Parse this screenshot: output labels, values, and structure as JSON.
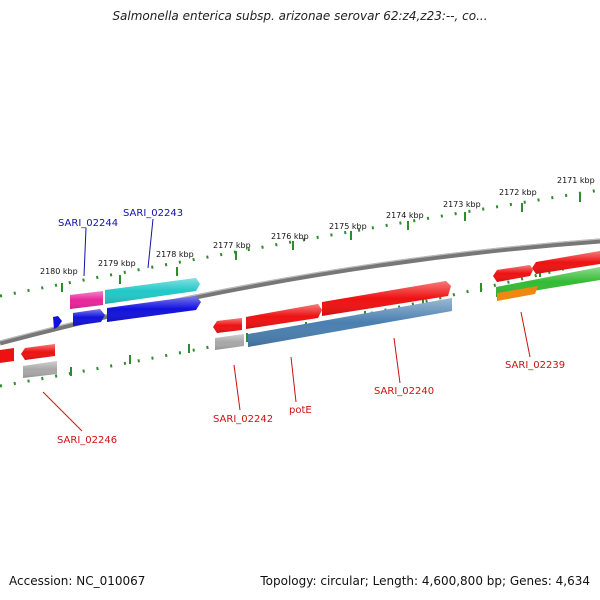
{
  "title": "Salmonella enterica subsp. arizonae serovar 62:z4,z23:--, co...",
  "accession_text": "Accession: NC_010067",
  "summary_text": "Topology: circular; Length: 4,600,800 bp; Genes: 4,634",
  "kbp_labels": [
    "2171 kbp",
    "2172 kbp",
    "2173 kbp",
    "2174 kbp",
    "2175 kbp",
    "2176 kbp",
    "2177 kbp",
    "2178 kbp",
    "2179 kbp",
    "2180 kbp"
  ],
  "gene_labels": [
    "SARI_02244",
    "SARI_02243",
    "SARI_02246",
    "SARI_02242",
    "potE",
    "SARI_02240",
    "SARI_02239"
  ],
  "colors": {
    "backbone": "#777777",
    "ticks": "#2e8b2e",
    "red": "#ee1111",
    "blue": "#1111dd",
    "cyan": "#22c8c8",
    "magenta": "#e8259c",
    "steelblue": "#4a7fb0",
    "gray": "#a8a8a8",
    "green": "#33bb33",
    "orange": "#ee8811",
    "label_blue": "#1111aa",
    "label_red": "#cc1111"
  }
}
